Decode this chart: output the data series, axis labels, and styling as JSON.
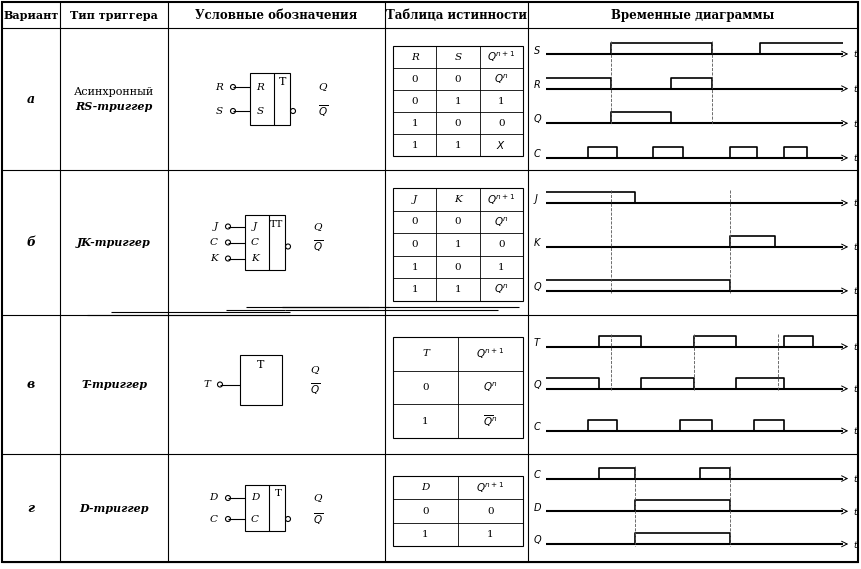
{
  "col_bounds": [
    2,
    60,
    168,
    385,
    528,
    858
  ],
  "row_bounds": [
    2,
    28,
    170,
    315,
    454,
    562
  ],
  "header_texts": [
    "Вариант",
    "Тип триггера",
    "Условные обозначения",
    "Таблица истинности",
    "Временные диаграммы"
  ],
  "row_variants": [
    "а",
    "б",
    "в",
    "г"
  ],
  "row_types": [
    "Асинхронный\nRS-триггер",
    "JK-триггер",
    "T-триггер",
    "D-триггер"
  ],
  "bg": "#ffffff",
  "line_color": "#000000"
}
